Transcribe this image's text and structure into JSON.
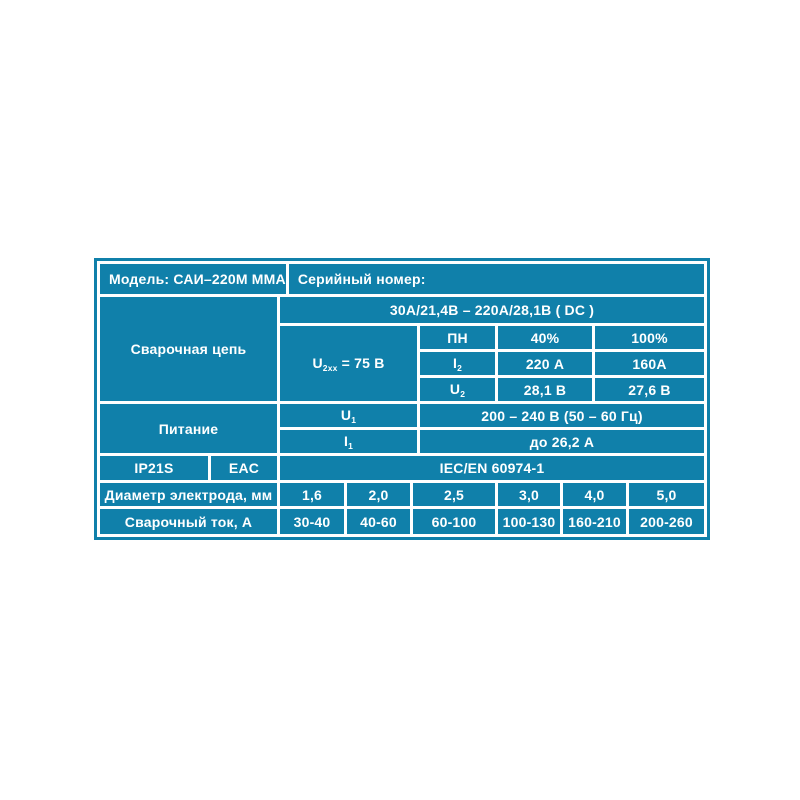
{
  "colors": {
    "cell": "#1080AA",
    "separator": "#FFFFFF",
    "text": "#FFFFFF",
    "background": "#FFFFFF"
  },
  "table": {
    "header": {
      "model": "Модель: САИ–220М ММА",
      "serial": "Серийный номер:"
    },
    "welding_circuit": {
      "label": "Сварочная цепь",
      "range": "30А/21,4В – 220А/28,1В ( DC )",
      "no_load_voltage": {
        "base": "U",
        "sub": "2xx",
        "rest": "= 75 В"
      },
      "duty_cycle": {
        "header": {
          "label": "ПН",
          "col40": "40%",
          "col100": "100%"
        },
        "rows": [
          {
            "param": {
              "base": "I",
              "sub": "2"
            },
            "v40": "220 А",
            "v100": "160А"
          },
          {
            "param": {
              "base": "U",
              "sub": "2"
            },
            "v40": "28,1 В",
            "v100": "27,6 В"
          }
        ]
      }
    },
    "power": {
      "label": "Питание",
      "rows": [
        {
          "param": {
            "base": "U",
            "sub": "1"
          },
          "value": "200 – 240 В (50 – 60 Гц)"
        },
        {
          "param": {
            "base": "I",
            "sub": "1"
          },
          "value": "до 26,2 А"
        }
      ]
    },
    "certifications": {
      "ip": "IP21S",
      "eac": "EAC",
      "standard": "IEC/EN 60974-1"
    },
    "electrode": {
      "label": "Диаметр электрода, мм",
      "values": [
        "1,6",
        "2,0",
        "2,5",
        "3,0",
        "4,0",
        "5,0"
      ]
    },
    "current": {
      "label": "Сварочный ток, А",
      "values": [
        "30-40",
        "40-60",
        "60-100",
        "100-130",
        "160-210",
        "200-260"
      ]
    }
  }
}
